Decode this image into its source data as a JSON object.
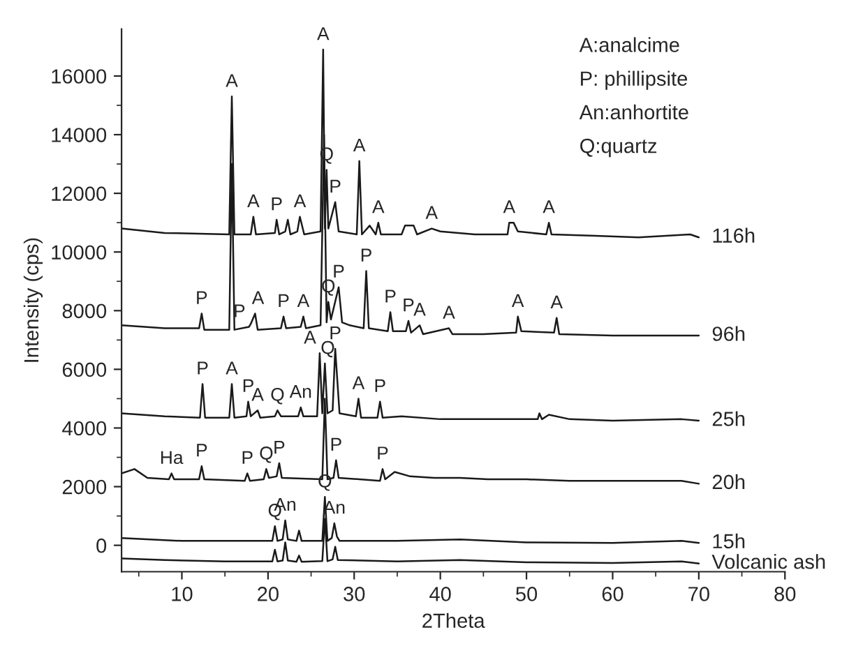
{
  "chart_data": {
    "type": "line",
    "xlabel": "2Theta",
    "ylabel": "Intensity (cps)",
    "xlim": [
      3,
      80
    ],
    "ylim": [
      -900,
      17600
    ],
    "xticks": [
      {
        "value": 5,
        "label": null
      },
      10,
      {
        "value": 15,
        "label": null
      },
      20,
      {
        "value": 25,
        "label": null
      },
      30,
      {
        "value": 35,
        "label": null
      },
      40,
      {
        "value": 45,
        "label": null
      },
      50,
      {
        "value": 55,
        "label": null
      },
      60,
      {
        "value": 65,
        "label": null
      },
      70,
      {
        "value": 75,
        "label": null
      },
      80
    ],
    "yticks": [
      0,
      {
        "value": 1000,
        "label": null
      },
      2000,
      {
        "value": 3000,
        "label": null
      },
      4000,
      {
        "value": 5000,
        "label": null
      },
      6000,
      {
        "value": 7000,
        "label": null
      },
      8000,
      {
        "value": 9000,
        "label": null
      },
      10000,
      {
        "value": 11000,
        "label": null
      },
      12000,
      {
        "value": 13000,
        "label": null
      },
      14000,
      {
        "value": 15000,
        "label": null
      },
      16000
    ],
    "grid": false,
    "legend": false,
    "marker": "none",
    "line_style": "solid",
    "series": [
      {
        "name": "Volcanic ash",
        "color": "#1a1a1a",
        "x": [
          3,
          8,
          15,
          20.5,
          20.8,
          21.1,
          21.7,
          22,
          22.3,
          23.3,
          23.6,
          23.9,
          26.3,
          26.6,
          26.9,
          27.5,
          27.8,
          28.1,
          35,
          42.3,
          50,
          60,
          68,
          70
        ],
        "values": [
          -450,
          -500,
          -550,
          -550,
          -150,
          -550,
          -520,
          100,
          -520,
          -560,
          -350,
          -560,
          -540,
          900,
          -540,
          -480,
          -50,
          -500,
          -550,
          -500,
          -580,
          -600,
          -550,
          -620
        ]
      },
      {
        "name": "15h",
        "color": "#1a1a1a",
        "x": [
          3,
          10,
          20.5,
          20.8,
          21.1,
          21.7,
          22,
          22.3,
          23.3,
          23.6,
          23.9,
          26.3,
          26.6,
          26.9,
          27.4,
          27.7,
          28,
          28.3,
          35,
          42.3,
          50,
          60,
          68,
          70
        ],
        "values": [
          250,
          150,
          150,
          650,
          150,
          200,
          850,
          200,
          150,
          500,
          150,
          150,
          1650,
          150,
          250,
          750,
          300,
          150,
          150,
          200,
          100,
          80,
          150,
          80
        ]
      },
      {
        "name": "20h",
        "color": "#1a1a1a",
        "x": [
          3,
          4.5,
          6,
          8.5,
          8.8,
          9.1,
          12,
          12.3,
          12.6,
          17.3,
          17.6,
          17.9,
          19.5,
          19.8,
          20.1,
          21,
          21.3,
          21.6,
          26.3,
          26.6,
          26.9,
          27.6,
          27.9,
          28.2,
          33,
          33.3,
          33.6,
          34.7,
          36.5,
          39.3,
          42.3,
          45.5,
          50,
          55,
          60,
          68,
          70
        ],
        "values": [
          2450,
          2600,
          2300,
          2250,
          2450,
          2250,
          2250,
          2700,
          2250,
          2200,
          2450,
          2200,
          2250,
          2600,
          2300,
          2350,
          2800,
          2300,
          2250,
          5000,
          2250,
          2300,
          2900,
          2300,
          2200,
          2600,
          2250,
          2500,
          2350,
          2300,
          2300,
          2250,
          2250,
          2200,
          2200,
          2200,
          2100
        ]
      },
      {
        "name": "25h",
        "color": "#1a1a1a",
        "x": [
          3,
          8,
          12.1,
          12.4,
          12.7,
          15.5,
          15.8,
          16.1,
          17.5,
          17.7,
          18,
          18.8,
          19.1,
          20.8,
          21.1,
          21.5,
          23.5,
          23.8,
          24.1,
          25.7,
          26,
          26.3,
          26.6,
          26.9,
          27.5,
          27.8,
          28.3,
          30.2,
          30.5,
          30.8,
          32.7,
          33,
          33.3,
          35.5,
          40,
          45,
          51.3,
          51.5,
          51.8,
          52.6,
          55,
          60,
          68,
          70
        ],
        "values": [
          4500,
          4400,
          4350,
          5500,
          4350,
          4350,
          5500,
          4350,
          4400,
          4900,
          4400,
          4600,
          4350,
          4400,
          4600,
          4400,
          4400,
          4700,
          4400,
          4400,
          6550,
          4500,
          6200,
          4500,
          4600,
          6700,
          4500,
          4400,
          5000,
          4350,
          4350,
          4900,
          4350,
          4400,
          4300,
          4300,
          4300,
          4500,
          4300,
          4450,
          4300,
          4250,
          4300,
          4250
        ]
      },
      {
        "name": "96h",
        "color": "#1a1a1a",
        "x": [
          3,
          8,
          12,
          12.3,
          12.6,
          15.5,
          15.8,
          16.1,
          17.8,
          18,
          18.5,
          18.8,
          21.5,
          21.8,
          22.1,
          23.8,
          24.1,
          24.4,
          26.1,
          26.5,
          26.8,
          27,
          27.3,
          28.2,
          28.6,
          29.5,
          31.1,
          31.4,
          31.7,
          33.9,
          34.2,
          34.5,
          36,
          36.3,
          36.6,
          37.6,
          38,
          41,
          41.4,
          45,
          48.8,
          49,
          49.4,
          53.2,
          53.5,
          53.8,
          60,
          65,
          70
        ],
        "values": [
          7500,
          7400,
          7400,
          7900,
          7350,
          7350,
          13000,
          7350,
          7450,
          7550,
          7900,
          7350,
          7400,
          7800,
          7400,
          7450,
          7800,
          7400,
          7500,
          14000,
          7600,
          8300,
          7700,
          8800,
          7600,
          7500,
          7400,
          9350,
          7400,
          7300,
          7950,
          7300,
          7300,
          7650,
          7250,
          7500,
          7200,
          7400,
          7200,
          7200,
          7250,
          7800,
          7300,
          7250,
          7750,
          7200,
          7150,
          7150,
          7150
        ]
      },
      {
        "name": "116h",
        "color": "#1a1a1a",
        "x": [
          3,
          8,
          15.5,
          15.8,
          16.1,
          18,
          18.3,
          18.6,
          20.8,
          21,
          21.3,
          22,
          22.3,
          22.6,
          23.4,
          23.7,
          24.2,
          26.1,
          26.4,
          26.6,
          26.8,
          27,
          27.8,
          28.2,
          30.3,
          30.6,
          30.9,
          31.8,
          32.5,
          32.8,
          33.1,
          35.5,
          35.9,
          36.9,
          37.3,
          39,
          40,
          44,
          47.8,
          48,
          48.5,
          49,
          52.3,
          52.6,
          52.9,
          58,
          63,
          69,
          70
        ],
        "values": [
          10800,
          10650,
          10600,
          15300,
          10600,
          10600,
          11200,
          10600,
          10650,
          11100,
          10600,
          10700,
          11100,
          10600,
          10700,
          11200,
          10600,
          10700,
          16900,
          10800,
          12800,
          10800,
          11700,
          10700,
          10600,
          13100,
          10600,
          10900,
          10600,
          11000,
          10600,
          10600,
          10900,
          10900,
          10600,
          10800,
          10700,
          10600,
          10600,
          11000,
          11000,
          10700,
          10600,
          11000,
          10600,
          10550,
          10500,
          10600,
          10500
        ]
      }
    ],
    "annotations": [
      "A:analcime",
      "P: phillipsite",
      "An:anhortite",
      "Q:quartz",
      {
        "text": "A",
        "x": 15.8,
        "y": 15300
      },
      {
        "text": "A",
        "x": 26.4,
        "y": 16900
      },
      {
        "text": "Q",
        "x": 26.8,
        "y": 12800
      },
      {
        "text": "P",
        "x": 27.8,
        "y": 11700
      },
      {
        "text": "A",
        "x": 30.6,
        "y": 13100
      },
      {
        "text": "A",
        "x": 18.3,
        "y": 11200
      },
      {
        "text": "P",
        "x": 21,
        "y": 11100
      },
      {
        "text": "A",
        "x": 23.7,
        "y": 11200
      },
      {
        "text": "A",
        "x": 32.8,
        "y": 11000
      },
      {
        "text": "A",
        "x": 39,
        "y": 10800
      },
      {
        "text": "A",
        "x": 48,
        "y": 11000
      },
      {
        "text": "A",
        "x": 52.6,
        "y": 11000
      },
      {
        "text": "P",
        "x": 12.3,
        "y": 7900
      },
      {
        "text": "P",
        "x": 17.8,
        "y": 7450
      },
      {
        "text": "A",
        "x": 18.5,
        "y": 7900
      },
      {
        "text": "P",
        "x": 21.8,
        "y": 7800
      },
      {
        "text": "A",
        "x": 24.1,
        "y": 7800
      },
      {
        "text": "Q",
        "x": 27,
        "y": 8300
      },
      {
        "text": "P",
        "x": 28.2,
        "y": 8800
      },
      {
        "text": "P",
        "x": 31.4,
        "y": 9350
      },
      {
        "text": "P",
        "x": 34.2,
        "y": 7950
      },
      {
        "text": "P",
        "x": 36.3,
        "y": 7650
      },
      {
        "text": "A",
        "x": 37.6,
        "y": 7500
      },
      {
        "text": "A",
        "x": 41,
        "y": 7400
      },
      {
        "text": "A",
        "x": 49,
        "y": 7800
      },
      {
        "text": "A",
        "x": 53.5,
        "y": 7750
      },
      {
        "text": "P",
        "x": 12.4,
        "y": 5500
      },
      {
        "text": "A",
        "x": 15.8,
        "y": 5500
      },
      {
        "text": "P",
        "x": 17.7,
        "y": 4900
      },
      {
        "text": "A",
        "x": 18.8,
        "y": 4600
      },
      {
        "text": "Q",
        "x": 21.1,
        "y": 4600
      },
      {
        "text": "An",
        "x": 23.8,
        "y": 4700
      },
      {
        "text": "A",
        "x": 26,
        "y": 6550
      },
      {
        "text": "Q",
        "x": 26.6,
        "y": 6200
      },
      {
        "text": "P",
        "x": 27.8,
        "y": 6700
      },
      {
        "text": "A",
        "x": 30.5,
        "y": 5000
      },
      {
        "text": "P",
        "x": 33,
        "y": 4900
      },
      {
        "text": "Ha",
        "x": 8.8,
        "y": 2450
      },
      {
        "text": "P",
        "x": 12.3,
        "y": 2700
      },
      {
        "text": "P",
        "x": 17.6,
        "y": 2450
      },
      {
        "text": "Q",
        "x": 19.8,
        "y": 2600
      },
      {
        "text": "P",
        "x": 21.3,
        "y": 2800
      },
      {
        "text": "P",
        "x": 27.9,
        "y": 2900
      },
      {
        "text": "P",
        "x": 33.3,
        "y": 2600
      },
      {
        "text": "Q",
        "x": 20.8,
        "y": 650
      },
      {
        "text": "An",
        "x": 22,
        "y": 850
      },
      {
        "text": "Q",
        "x": 26.6,
        "y": 1650
      },
      {
        "text": "An",
        "x": 27.7,
        "y": 750
      }
    ]
  }
}
